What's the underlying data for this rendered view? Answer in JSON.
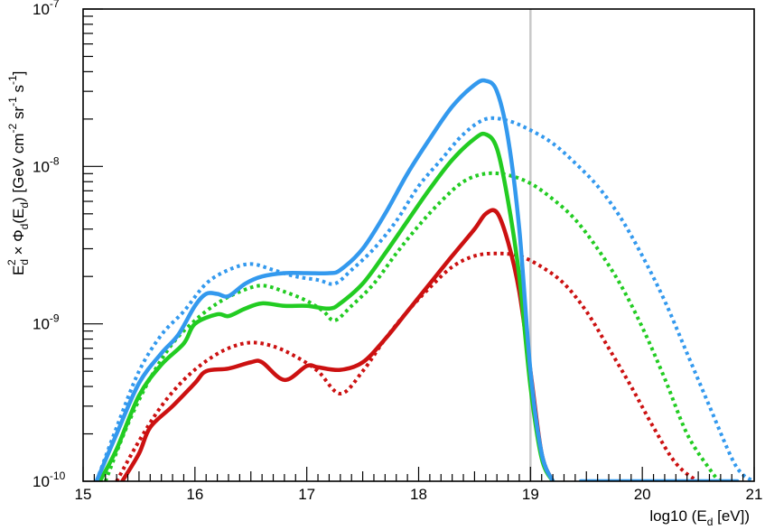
{
  "chart_data": {
    "type": "line",
    "title": "",
    "xlabel": "log10 (E_d [eV])",
    "xlabel_parts": {
      "pre": "log10 (E",
      "sub": "d",
      "post": " [eV])"
    },
    "ylabel": "E_d^2 × Φ_d(E_d) [GeV cm^-2 sr^-1 s^-1]",
    "ylabel_parts": {
      "a": "E",
      "a_sub": "d",
      "a_sup": "2",
      "b": " × Φ",
      "b_sub": "d",
      "c": "(E",
      "c_sub": "d",
      "d": ") [GeV cm",
      "d_sup": "-2",
      "e": " sr",
      "e_sup": "-1",
      "f": " s",
      "f_sup": "-1",
      "g": "]"
    },
    "xlim": [
      15,
      21
    ],
    "ylim": [
      1e-10,
      1e-07
    ],
    "yscale": "log",
    "grid": false,
    "x_ticks": [
      "15",
      "16",
      "17",
      "18",
      "19",
      "20",
      "21"
    ],
    "y_ticks": [
      {
        "base": "10",
        "exp": "-10"
      },
      {
        "base": "10",
        "exp": "-9"
      },
      {
        "base": "10",
        "exp": "-8"
      },
      {
        "base": "10",
        "exp": "-7"
      }
    ],
    "vertical_line": {
      "x": 19.0,
      "color": "#c8c8c8"
    },
    "series": [
      {
        "color": "#3399ee",
        "style": "solid",
        "x": [
          15.12,
          15.3,
          15.5,
          15.7,
          15.85,
          16.0,
          16.1,
          16.2,
          16.3,
          16.45,
          16.6,
          16.8,
          17.0,
          17.2,
          17.3,
          17.5,
          17.7,
          17.9,
          18.1,
          18.3,
          18.5,
          18.6,
          18.7,
          18.8,
          18.9,
          19.0,
          19.1,
          19.2
        ],
        "y": [
          1e-10,
          2e-10,
          4.2e-10,
          6.5e-10,
          8.5e-10,
          1.3e-09,
          1.55e-09,
          1.55e-09,
          1.5e-09,
          1.8e-09,
          2e-09,
          2.1e-09,
          2.1e-09,
          2.1e-09,
          2.2e-09,
          3e-09,
          5e-09,
          9e-09,
          1.5e-08,
          2.4e-08,
          3.3e-08,
          3.5e-08,
          3e-08,
          1.5e-08,
          4e-09,
          5e-10,
          1.5e-10,
          1e-10
        ]
      },
      {
        "color": "#3399ee",
        "style": "flat",
        "x": [
          19.45,
          20.85
        ],
        "y": [
          1e-10,
          1e-10
        ]
      },
      {
        "color": "#3399ee",
        "style": "dotted",
        "x": [
          15.12,
          15.3,
          15.5,
          15.7,
          15.9,
          16.1,
          16.3,
          16.5,
          16.7,
          16.9,
          17.1,
          17.25,
          17.4,
          17.6,
          17.8,
          18.0,
          18.2,
          18.4,
          18.6,
          18.8,
          19.0,
          19.2,
          19.4,
          19.6,
          19.8,
          20.0,
          20.2,
          20.4,
          20.6,
          20.8,
          20.9,
          21.0
        ],
        "y": [
          1e-10,
          2.2e-10,
          5e-10,
          8.5e-10,
          1.2e-09,
          1.8e-09,
          2.2e-09,
          2.4e-09,
          2.2e-09,
          2e-09,
          1.9e-09,
          1.8e-09,
          2.2e-09,
          3e-09,
          4.5e-09,
          7.5e-09,
          1.1e-08,
          1.6e-08,
          2e-08,
          1.95e-08,
          1.7e-08,
          1.4e-08,
          1.05e-08,
          7.5e-09,
          4.8e-09,
          2.7e-09,
          1.4e-09,
          6.5e-10,
          3e-10,
          1.4e-10,
          1.1e-10,
          1e-10
        ]
      },
      {
        "color": "#22cc22",
        "style": "solid",
        "x": [
          15.15,
          15.3,
          15.5,
          15.7,
          15.9,
          16.0,
          16.2,
          16.3,
          16.45,
          16.6,
          16.8,
          17.0,
          17.2,
          17.3,
          17.5,
          17.7,
          17.9,
          18.1,
          18.3,
          18.5,
          18.6,
          18.7,
          18.8,
          18.9,
          19.0,
          19.1,
          19.2
        ],
        "y": [
          1e-10,
          1.6e-10,
          3.5e-10,
          5.5e-10,
          7.5e-10,
          1e-09,
          1.15e-09,
          1.12e-09,
          1.25e-09,
          1.35e-09,
          1.3e-09,
          1.3e-09,
          1.25e-09,
          1.35e-09,
          1.8e-09,
          2.8e-09,
          4.5e-09,
          7.2e-09,
          1.1e-08,
          1.5e-08,
          1.6e-08,
          1.3e-08,
          6e-09,
          2e-09,
          4e-10,
          1.4e-10,
          1e-10
        ]
      },
      {
        "color": "#22cc22",
        "style": "dotted",
        "x": [
          15.2,
          15.4,
          15.6,
          15.8,
          16.0,
          16.2,
          16.4,
          16.6,
          16.8,
          17.0,
          17.15,
          17.25,
          17.4,
          17.6,
          17.8,
          18.0,
          18.2,
          18.4,
          18.6,
          18.8,
          19.0,
          19.2,
          19.4,
          19.6,
          19.8,
          20.0,
          20.2,
          20.4,
          20.6,
          20.7,
          20.8
        ],
        "y": [
          1e-10,
          2.3e-10,
          4.5e-10,
          7.5e-10,
          1.05e-09,
          1.35e-09,
          1.6e-09,
          1.75e-09,
          1.6e-09,
          1.4e-09,
          1.2e-09,
          1.05e-09,
          1.3e-09,
          1.8e-09,
          2.8e-09,
          4.2e-09,
          6e-09,
          8e-09,
          9e-09,
          8.8e-09,
          7.8e-09,
          6.2e-09,
          4.6e-09,
          3e-09,
          1.8e-09,
          9.5e-10,
          4.5e-10,
          2e-10,
          1.2e-10,
          1e-10,
          1e-10
        ]
      },
      {
        "color": "#cc1111",
        "style": "solid",
        "x": [
          15.35,
          15.5,
          15.6,
          15.8,
          16.0,
          16.1,
          16.3,
          16.5,
          16.6,
          16.8,
          17.0,
          17.1,
          17.3,
          17.5,
          17.7,
          17.9,
          18.1,
          18.3,
          18.5,
          18.6,
          18.7,
          18.8,
          18.9,
          19.0,
          19.1,
          19.2
        ],
        "y": [
          1e-10,
          1.5e-10,
          2.2e-10,
          3e-10,
          4.2e-10,
          5e-10,
          5.2e-10,
          5.7e-10,
          5.7e-10,
          4.4e-10,
          5.4e-10,
          5.3e-10,
          5.1e-10,
          5.7e-10,
          8e-10,
          1.2e-09,
          1.8e-09,
          2.7e-09,
          4e-09,
          5e-09,
          5.1e-09,
          3.3e-09,
          1.6e-09,
          5e-10,
          1.5e-10,
          1e-10
        ]
      },
      {
        "color": "#cc1111",
        "style": "dotted",
        "x": [
          15.3,
          15.5,
          15.7,
          15.9,
          16.1,
          16.3,
          16.5,
          16.7,
          16.9,
          17.1,
          17.3,
          17.5,
          17.7,
          17.9,
          18.1,
          18.3,
          18.5,
          18.7,
          18.9,
          19.1,
          19.3,
          19.5,
          19.7,
          19.9,
          20.1,
          20.3,
          20.5,
          20.6
        ],
        "y": [
          1e-10,
          1.8e-10,
          3e-10,
          4.4e-10,
          5.8e-10,
          7e-10,
          7.6e-10,
          7.2e-10,
          6.2e-10,
          5e-10,
          3.6e-10,
          5e-10,
          8e-10,
          1.2e-09,
          1.7e-09,
          2.3e-09,
          2.7e-09,
          2.8e-09,
          2.7e-09,
          2.3e-09,
          1.8e-09,
          1.2e-09,
          7e-10,
          4e-10,
          2.2e-10,
          1.3e-10,
          1e-10,
          1e-10
        ]
      }
    ]
  }
}
